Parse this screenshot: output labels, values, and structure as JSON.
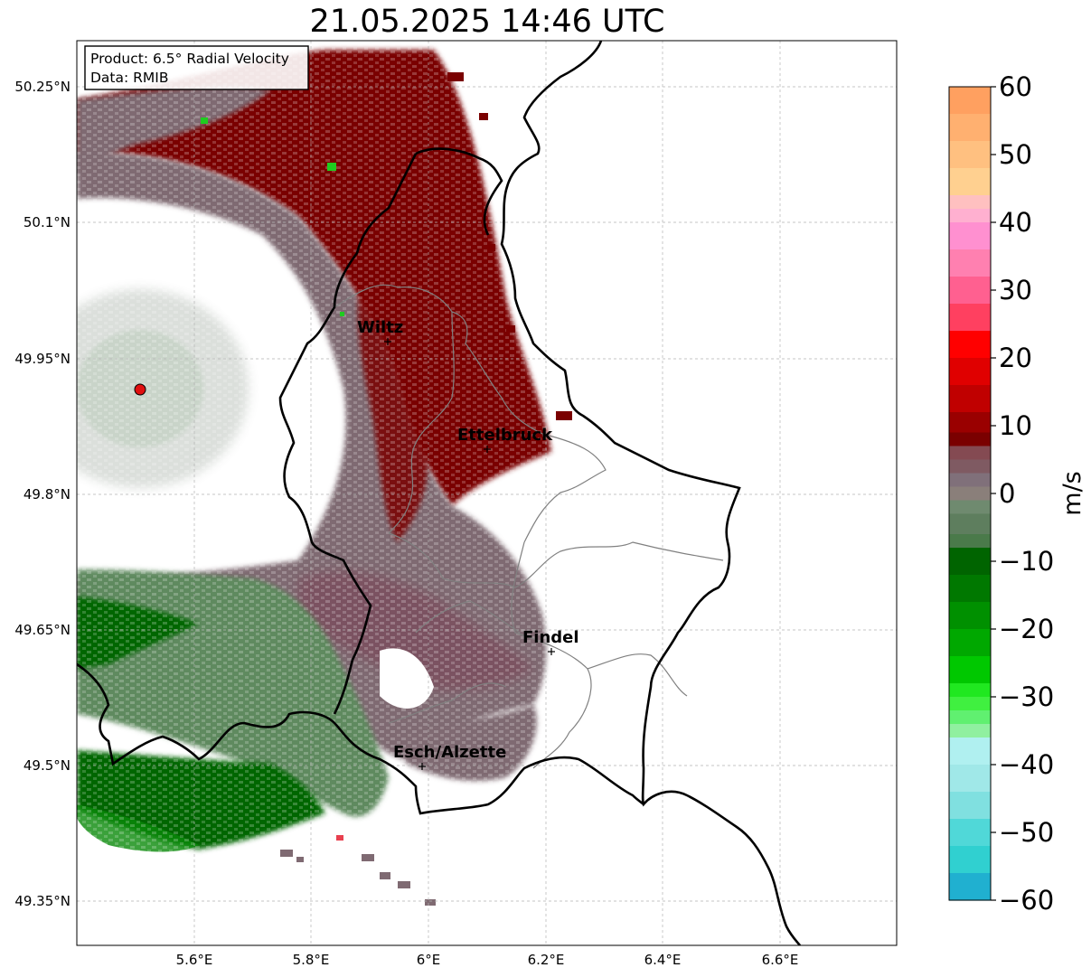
{
  "title": "21.05.2025 14:46 UTC",
  "info_box": {
    "line1": "Product: 6.5° Radial Velocity",
    "line2": "Data: RMIB"
  },
  "lat_ticks": [
    "50.25°N",
    "50.1°N",
    "49.95°N",
    "49.8°N",
    "49.65°N",
    "49.5°N",
    "49.35°N"
  ],
  "lon_ticks": [
    "5.6°E",
    "5.8°E",
    "6°E",
    "6.2°E",
    "6.4°E",
    "6.6°E"
  ],
  "cities": [
    {
      "name": "Wiltz"
    },
    {
      "name": "Ettelbruck"
    },
    {
      "name": "Findel"
    },
    {
      "name": "Esch/Alzette"
    }
  ],
  "colorbar": {
    "label": "m/s",
    "ticks": [
      "60",
      "50",
      "40",
      "30",
      "20",
      "10",
      "0",
      "−10",
      "−20",
      "−30",
      "−40",
      "−50",
      "−60"
    ],
    "min": -60,
    "max": 60
  },
  "colors": {
    "outbound_dark": "#7a0000",
    "neutral": "#7f6a72",
    "inbound_dark": "#056605",
    "inbound_light": "#5e8a5e",
    "radar_site": "#e01010"
  }
}
